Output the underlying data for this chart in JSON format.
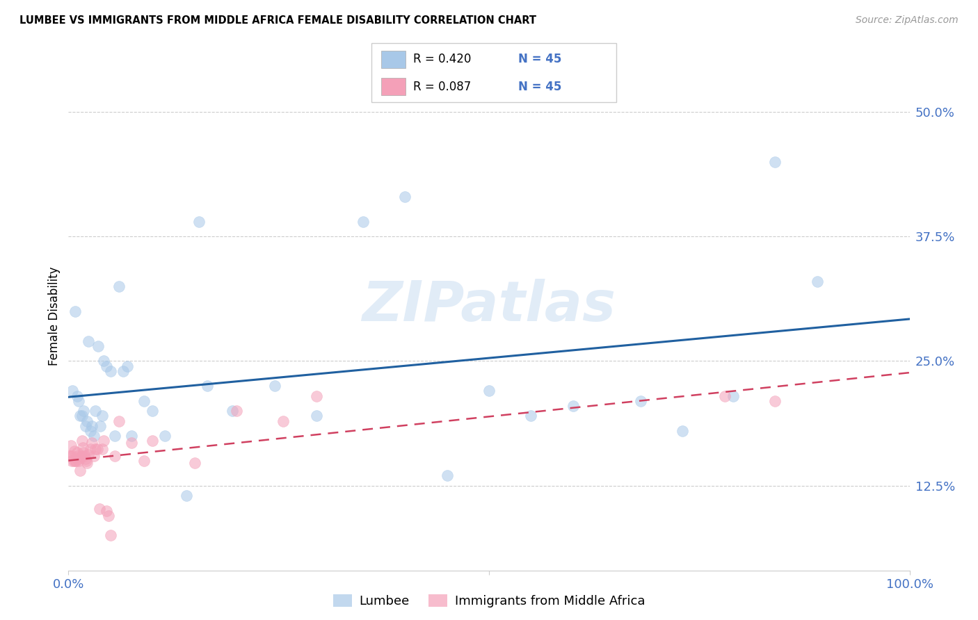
{
  "title": "LUMBEE VS IMMIGRANTS FROM MIDDLE AFRICA FEMALE DISABILITY CORRELATION CHART",
  "source": "Source: ZipAtlas.com",
  "ylabel": "Female Disability",
  "ytick_labels": [
    "12.5%",
    "25.0%",
    "37.5%",
    "50.0%"
  ],
  "ytick_values": [
    0.125,
    0.25,
    0.375,
    0.5
  ],
  "xlim": [
    0.0,
    1.0
  ],
  "ylim": [
    0.04,
    0.55
  ],
  "lumbee_color": "#a8c8e8",
  "immigrants_color": "#f4a0b8",
  "lumbee_line_color": "#2060a0",
  "immigrants_line_color": "#d04060",
  "watermark": "ZIPatlas",
  "lumbee_x": [
    0.005,
    0.008,
    0.01,
    0.012,
    0.014,
    0.016,
    0.018,
    0.02,
    0.022,
    0.024,
    0.026,
    0.028,
    0.03,
    0.032,
    0.035,
    0.038,
    0.04,
    0.042,
    0.045,
    0.05,
    0.055,
    0.06,
    0.065,
    0.07,
    0.075,
    0.09,
    0.1,
    0.115,
    0.14,
    0.155,
    0.165,
    0.195,
    0.245,
    0.295,
    0.35,
    0.4,
    0.45,
    0.5,
    0.55,
    0.6,
    0.68,
    0.73,
    0.79,
    0.84,
    0.89
  ],
  "lumbee_y": [
    0.22,
    0.3,
    0.215,
    0.21,
    0.195,
    0.195,
    0.2,
    0.185,
    0.19,
    0.27,
    0.18,
    0.185,
    0.175,
    0.2,
    0.265,
    0.185,
    0.195,
    0.25,
    0.245,
    0.24,
    0.175,
    0.325,
    0.24,
    0.245,
    0.175,
    0.21,
    0.2,
    0.175,
    0.115,
    0.39,
    0.225,
    0.2,
    0.225,
    0.195,
    0.39,
    0.415,
    0.135,
    0.22,
    0.195,
    0.205,
    0.21,
    0.18,
    0.215,
    0.45,
    0.33
  ],
  "immigrants_x": [
    0.001,
    0.002,
    0.003,
    0.004,
    0.005,
    0.006,
    0.007,
    0.008,
    0.009,
    0.01,
    0.011,
    0.012,
    0.013,
    0.014,
    0.015,
    0.016,
    0.017,
    0.018,
    0.019,
    0.02,
    0.021,
    0.022,
    0.024,
    0.026,
    0.028,
    0.03,
    0.032,
    0.034,
    0.037,
    0.04,
    0.042,
    0.045,
    0.048,
    0.05,
    0.055,
    0.06,
    0.075,
    0.09,
    0.1,
    0.15,
    0.2,
    0.255,
    0.295,
    0.78,
    0.84
  ],
  "immigrants_y": [
    0.155,
    0.155,
    0.165,
    0.15,
    0.155,
    0.15,
    0.16,
    0.15,
    0.15,
    0.158,
    0.155,
    0.15,
    0.152,
    0.14,
    0.155,
    0.17,
    0.163,
    0.158,
    0.155,
    0.152,
    0.15,
    0.148,
    0.156,
    0.162,
    0.168,
    0.155,
    0.162,
    0.162,
    0.102,
    0.162,
    0.17,
    0.1,
    0.095,
    0.075,
    0.155,
    0.19,
    0.168,
    0.15,
    0.17,
    0.148,
    0.2,
    0.19,
    0.215,
    0.215,
    0.21
  ]
}
